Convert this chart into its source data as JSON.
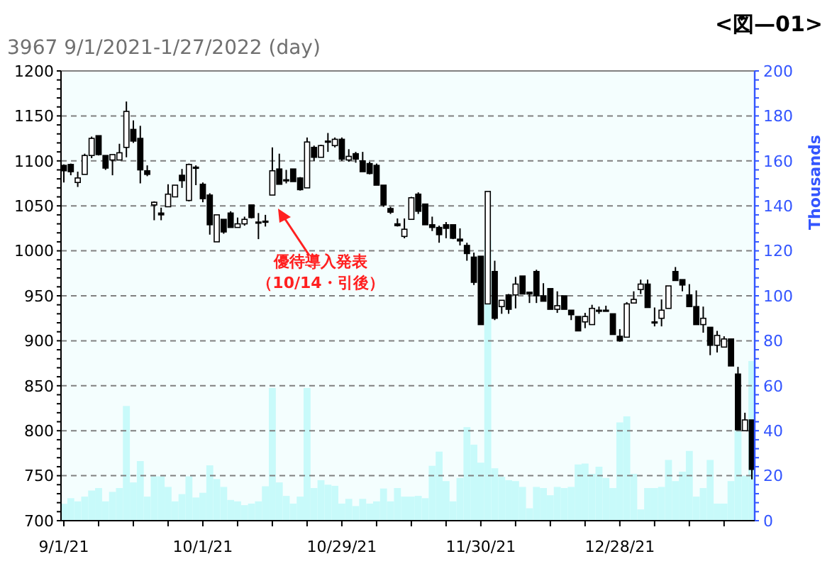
{
  "chart_data": {
    "type": "candlestick",
    "title": "<図—01>",
    "subtitle": "3967 9/1/2021-1/27/2022 (day)",
    "y2label": "Thousands",
    "categories": [
      "9/1/21",
      null,
      null,
      null,
      null,
      null,
      null,
      null,
      null,
      null,
      null,
      null,
      null,
      null,
      null,
      null,
      null,
      null,
      null,
      null,
      "10/1/21",
      null,
      null,
      null,
      null,
      null,
      null,
      null,
      null,
      null,
      null,
      null,
      null,
      null,
      null,
      null,
      null,
      null,
      null,
      null,
      "10/29/21",
      null,
      null,
      null,
      null,
      null,
      null,
      null,
      null,
      null,
      null,
      null,
      null,
      null,
      null,
      null,
      null,
      null,
      null,
      null,
      "11/30/21",
      null,
      null,
      null,
      null,
      null,
      null,
      null,
      null,
      null,
      null,
      null,
      null,
      null,
      null,
      null,
      null,
      null,
      null,
      null,
      "12/28/21",
      null,
      null,
      null,
      null,
      null,
      null,
      null,
      null,
      null,
      null,
      null,
      null,
      null,
      null,
      null,
      null,
      null,
      null,
      null
    ],
    "ohlc": [
      [
        1095,
        1096,
        1076,
        1089
      ],
      [
        1096,
        1097,
        1084,
        1088
      ],
      [
        1076,
        1088,
        1071,
        1081
      ],
      [
        1085,
        1108,
        1085,
        1106
      ],
      [
        1106,
        1127,
        1103,
        1125
      ],
      [
        1128,
        1128,
        1106,
        1107
      ],
      [
        1106,
        1106,
        1090,
        1092
      ],
      [
        1101,
        1107,
        1084,
        1107
      ],
      [
        1101,
        1119,
        1101,
        1109
      ],
      [
        1115,
        1166,
        1104,
        1155
      ],
      [
        1135,
        1145,
        1120,
        1122
      ],
      [
        1125,
        1139,
        1075,
        1090
      ],
      [
        1089,
        1095,
        1083,
        1085
      ],
      [
        1051,
        1055,
        1034,
        1054
      ],
      [
        1042,
        1048,
        1034,
        1040
      ],
      [
        1049,
        1074,
        1049,
        1063
      ],
      [
        1060,
        1073,
        1060,
        1073
      ],
      [
        1084,
        1091,
        1070,
        1078
      ],
      [
        1056,
        1097,
        1055,
        1096
      ],
      [
        1093,
        1095,
        1073,
        1092
      ],
      [
        1074,
        1076,
        1054,
        1058
      ],
      [
        1062,
        1064,
        1018,
        1029
      ],
      [
        1010,
        1040,
        1010,
        1040
      ],
      [
        1035,
        1035,
        1019,
        1021
      ],
      [
        1042,
        1044,
        1026,
        1026
      ],
      [
        1026,
        1037,
        1026,
        1030
      ],
      [
        1030,
        1038,
        1028,
        1035
      ],
      [
        1051,
        1051,
        1036,
        1037
      ],
      [
        1031,
        1042,
        1013,
        1032
      ],
      [
        1032,
        1040,
        1027,
        1033
      ],
      [
        1062,
        1115,
        1062,
        1089
      ],
      [
        1091,
        1108,
        1074,
        1074
      ],
      [
        1079,
        1090,
        1075,
        1078
      ],
      [
        1091,
        1091,
        1077,
        1077
      ],
      [
        1081,
        1082,
        1067,
        1068
      ],
      [
        1070,
        1126,
        1070,
        1121
      ],
      [
        1115,
        1117,
        1100,
        1104
      ],
      [
        1104,
        1118,
        1104,
        1117
      ],
      [
        1121,
        1131,
        1110,
        1122
      ],
      [
        1117,
        1126,
        1115,
        1124
      ],
      [
        1124,
        1126,
        1100,
        1102
      ],
      [
        1101,
        1113,
        1099,
        1105
      ],
      [
        1108,
        1110,
        1098,
        1102
      ],
      [
        1100,
        1110,
        1088,
        1088
      ],
      [
        1097,
        1099,
        1085,
        1086
      ],
      [
        1095,
        1097,
        1073,
        1073
      ],
      [
        1073,
        1073,
        1049,
        1051
      ],
      [
        1047,
        1049,
        1041,
        1043
      ],
      [
        1030,
        1036,
        1027,
        1028
      ],
      [
        1016,
        1036,
        1014,
        1024
      ],
      [
        1035,
        1060,
        1035,
        1059
      ],
      [
        1063,
        1065,
        1041,
        1044
      ],
      [
        1052,
        1052,
        1029,
        1029
      ],
      [
        1029,
        1038,
        1022,
        1026
      ],
      [
        1026,
        1028,
        1009,
        1018
      ],
      [
        1029,
        1032,
        1014,
        1025
      ],
      [
        1029,
        1029,
        1013,
        1014
      ],
      [
        1013,
        1025,
        1006,
        1011
      ],
      [
        1006,
        1009,
        989,
        997
      ],
      [
        993,
        998,
        962,
        965
      ],
      [
        994,
        994,
        918,
        918
      ],
      [
        941,
        1066,
        941,
        1066
      ],
      [
        977,
        989,
        923,
        925
      ],
      [
        938,
        945,
        930,
        945
      ],
      [
        951,
        952,
        930,
        935
      ],
      [
        951,
        971,
        936,
        963
      ],
      [
        972,
        972,
        952,
        952
      ],
      [
        954,
        954,
        942,
        952
      ],
      [
        977,
        979,
        942,
        950
      ],
      [
        950,
        964,
        944,
        944
      ],
      [
        958,
        958,
        935,
        935
      ],
      [
        935,
        955,
        931,
        939
      ],
      [
        950,
        950,
        935,
        935
      ],
      [
        934,
        934,
        923,
        929
      ],
      [
        927,
        927,
        911,
        911
      ],
      [
        921,
        931,
        914,
        927
      ],
      [
        918,
        940,
        918,
        936
      ],
      [
        933,
        938,
        930,
        934
      ],
      [
        934,
        939,
        934,
        934
      ],
      [
        930,
        930,
        907,
        907
      ],
      [
        905,
        913,
        899,
        900
      ],
      [
        904,
        943,
        904,
        941
      ],
      [
        942,
        955,
        942,
        946
      ],
      [
        957,
        968,
        952,
        963
      ],
      [
        963,
        968,
        937,
        937
      ],
      [
        921,
        937,
        916,
        920
      ],
      [
        925,
        946,
        916,
        934
      ],
      [
        936,
        961,
        936,
        961
      ],
      [
        977,
        982,
        967,
        967
      ],
      [
        968,
        968,
        955,
        962
      ],
      [
        951,
        963,
        938,
        938
      ],
      [
        938,
        956,
        918,
        918
      ],
      [
        918,
        938,
        909,
        925
      ],
      [
        915,
        915,
        884,
        895
      ],
      [
        895,
        911,
        887,
        906
      ],
      [
        893,
        905,
        893,
        902
      ],
      [
        902,
        902,
        872,
        872
      ],
      [
        863,
        871,
        801,
        801
      ],
      [
        800,
        820,
        800,
        812
      ],
      [
        812,
        812,
        746,
        757
      ]
    ],
    "series": [
      {
        "type": "bar",
        "axis": "y2",
        "color": "#c8fafa",
        "values": [
          7.5,
          10,
          8.6,
          10.7,
          13.4,
          14.5,
          8.6,
          12.8,
          14.5,
          51,
          17,
          26.5,
          10.7,
          19.7,
          19.7,
          15,
          8.6,
          11.8,
          19.7,
          10.3,
          12.4,
          24.6,
          18.5,
          15,
          9.2,
          8.6,
          6.9,
          7.6,
          8.6,
          15.3,
          59,
          17,
          11,
          7.6,
          10.7,
          59,
          14.5,
          18,
          16,
          15.5,
          7.6,
          9.7,
          6.5,
          9.7,
          7.6,
          8.6,
          14.3,
          8.6,
          14.5,
          10.7,
          10.7,
          11,
          10,
          24.4,
          30.7,
          17.6,
          8.6,
          19,
          41.6,
          33.8,
          25.8,
          124.7,
          23.3,
          19.5,
          18,
          17.6,
          15,
          5.5,
          15,
          14.5,
          11.3,
          15,
          14.5,
          15,
          25,
          25.4,
          20.8,
          24,
          19,
          14.5,
          43.7,
          46.4,
          20.8,
          5,
          14.5,
          14.5,
          15,
          27,
          17.6,
          21.8,
          31,
          10.7,
          14.5,
          27,
          7.6,
          7.6,
          17.6,
          40,
          20,
          71
        ]
      }
    ],
    "ylim": [
      700,
      1200
    ],
    "yticks": [
      700,
      750,
      800,
      850,
      900,
      950,
      1000,
      1050,
      1100,
      1150,
      1200
    ],
    "y2lim": [
      0,
      200
    ],
    "y2ticks": [
      0,
      20,
      40,
      60,
      80,
      100,
      120,
      140,
      160,
      180,
      200
    ],
    "grid": "y",
    "annotations": [
      "優待導入発表",
      "（10/14・引後）"
    ]
  }
}
